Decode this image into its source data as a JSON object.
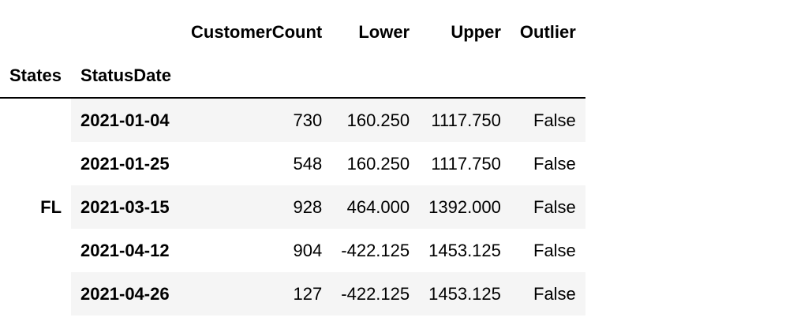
{
  "table": {
    "columns": [
      "CustomerCount",
      "Lower",
      "Upper",
      "Outlier"
    ],
    "index_names": [
      "States",
      "StatusDate"
    ],
    "group_label": "FL",
    "rows": [
      {
        "date": "2021-01-04",
        "values": [
          "730",
          "160.250",
          "1117.750",
          "False"
        ]
      },
      {
        "date": "2021-01-25",
        "values": [
          "548",
          "160.250",
          "1117.750",
          "False"
        ]
      },
      {
        "date": "2021-03-15",
        "values": [
          "928",
          "464.000",
          "1392.000",
          "False"
        ]
      },
      {
        "date": "2021-04-12",
        "values": [
          "904",
          "-422.125",
          "1453.125",
          "False"
        ]
      },
      {
        "date": "2021-04-26",
        "values": [
          "127",
          "-422.125",
          "1453.125",
          "False"
        ]
      }
    ]
  }
}
